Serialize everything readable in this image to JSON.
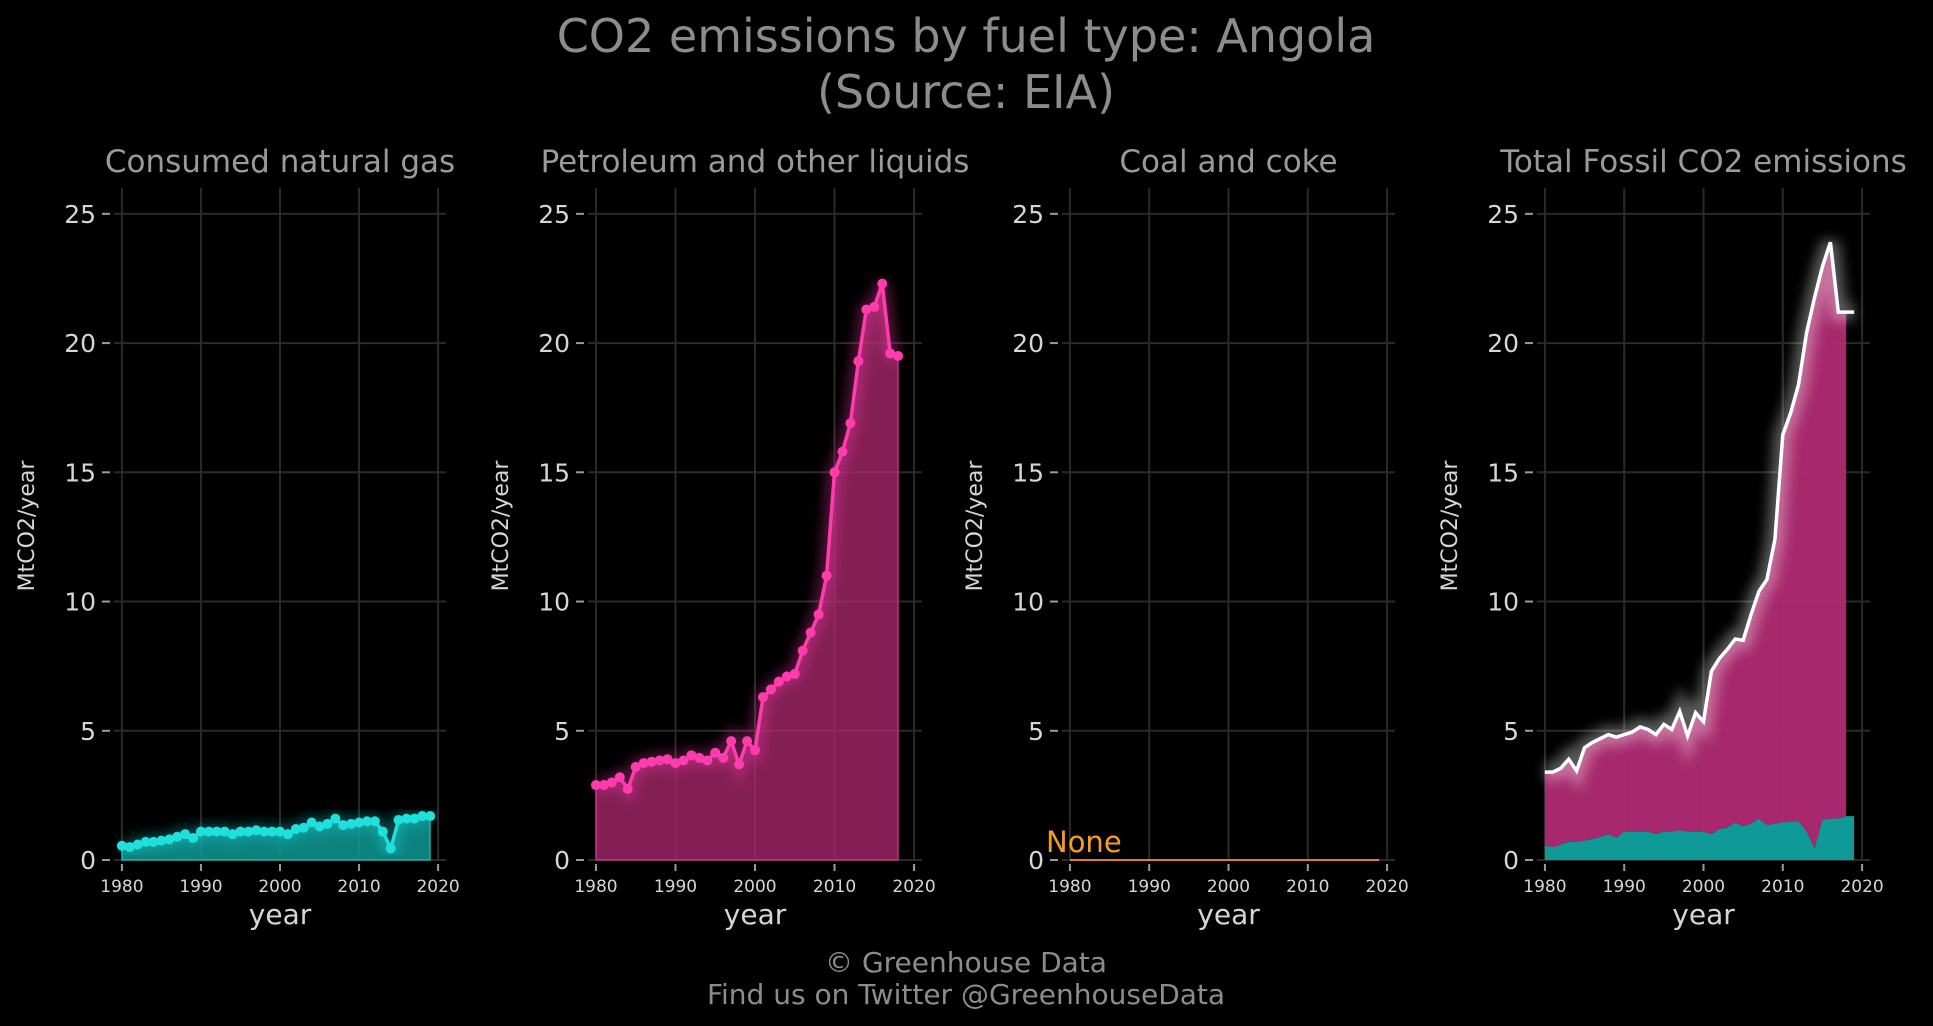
{
  "title_line1": "CO2 emissions by fuel type: Angola",
  "title_line2": "(Source: EIA)",
  "credit_line1": "© Greenhouse Data",
  "credit_line2": "Find us on Twitter @GreenhouseData",
  "colors": {
    "gas": "#1ee0dc",
    "gas_fill": "#0f9a97",
    "petroleum": "#ff3cad",
    "petroleum_fill": "#b02a72",
    "coal": "#e07a3a",
    "total": "#ffffff",
    "none_label": "#f29d23"
  },
  "chart_data": [
    {
      "type": "area",
      "title": "Consumed natural gas",
      "xlabel": "year",
      "ylabel": "MtCO2/year",
      "xlim": [
        1979,
        2021
      ],
      "ylim": [
        0,
        26
      ],
      "xticks": [
        1980,
        1990,
        2000,
        2010,
        2020
      ],
      "yticks": [
        0,
        5,
        10,
        15,
        20,
        25
      ],
      "series": [
        {
          "x": [
            1980,
            1981,
            1982,
            1983,
            1984,
            1985,
            1986,
            1987,
            1988,
            1989,
            1990,
            1991,
            1992,
            1993,
            1994,
            1995,
            1996,
            1997,
            1998,
            1999,
            2000,
            2001,
            2002,
            2003,
            2004,
            2005,
            2006,
            2007,
            2008,
            2009,
            2010,
            2011,
            2012,
            2013,
            2014,
            2015,
            2016,
            2017,
            2018,
            2019
          ],
          "y": [
            0.55,
            0.5,
            0.6,
            0.7,
            0.7,
            0.75,
            0.8,
            0.9,
            1.0,
            0.85,
            1.1,
            1.1,
            1.1,
            1.1,
            1.0,
            1.1,
            1.1,
            1.15,
            1.1,
            1.1,
            1.1,
            1.0,
            1.2,
            1.25,
            1.45,
            1.3,
            1.4,
            1.6,
            1.35,
            1.4,
            1.45,
            1.5,
            1.5,
            1.1,
            0.45,
            1.55,
            1.6,
            1.6,
            1.7,
            1.7
          ]
        }
      ]
    },
    {
      "type": "area",
      "title": "Petroleum and other liquids",
      "xlabel": "year",
      "ylabel": "MtCO2/year",
      "xlim": [
        1979,
        2021
      ],
      "ylim": [
        0,
        26
      ],
      "xticks": [
        1980,
        1990,
        2000,
        2010,
        2020
      ],
      "yticks": [
        0,
        5,
        10,
        15,
        20,
        25
      ],
      "series": [
        {
          "x": [
            1980,
            1981,
            1982,
            1983,
            1984,
            1985,
            1986,
            1987,
            1988,
            1989,
            1990,
            1991,
            1992,
            1993,
            1994,
            1995,
            1996,
            1997,
            1998,
            1999,
            2000,
            2001,
            2002,
            2003,
            2004,
            2005,
            2006,
            2007,
            2008,
            2009,
            2010,
            2011,
            2012,
            2013,
            2014,
            2015,
            2016,
            2017,
            2018
          ],
          "y": [
            2.9,
            2.9,
            3.0,
            3.2,
            2.75,
            3.6,
            3.75,
            3.8,
            3.85,
            3.9,
            3.75,
            3.85,
            4.05,
            3.95,
            3.85,
            4.15,
            3.95,
            4.6,
            3.7,
            4.6,
            4.25,
            6.3,
            6.6,
            6.9,
            7.1,
            7.2,
            8.1,
            8.8,
            9.5,
            11.0,
            15.0,
            15.8,
            16.9,
            19.3,
            21.3,
            21.4,
            22.3,
            19.6,
            19.5
          ]
        }
      ]
    },
    {
      "type": "line",
      "title": "Coal and coke",
      "xlabel": "year",
      "ylabel": "MtCO2/year",
      "xlim": [
        1979,
        2021
      ],
      "ylim": [
        0,
        26
      ],
      "xticks": [
        1980,
        1990,
        2000,
        2010,
        2020
      ],
      "yticks": [
        0,
        5,
        10,
        15,
        20,
        25
      ],
      "annotation": "None",
      "series": [
        {
          "x": [
            1980,
            2019
          ],
          "y": [
            0,
            0
          ]
        }
      ]
    },
    {
      "type": "area",
      "title": "Total Fossil CO2 emissions",
      "xlabel": "year",
      "ylabel": "MtCO2/year",
      "xlim": [
        1979,
        2021
      ],
      "ylim": [
        0,
        26
      ],
      "xticks": [
        1980,
        1990,
        2000,
        2010,
        2020
      ],
      "yticks": [
        0,
        5,
        10,
        15,
        20,
        25
      ],
      "stacked": true,
      "series": [
        {
          "name_key": "gas",
          "x": [
            1980,
            1981,
            1982,
            1983,
            1984,
            1985,
            1986,
            1987,
            1988,
            1989,
            1990,
            1991,
            1992,
            1993,
            1994,
            1995,
            1996,
            1997,
            1998,
            1999,
            2000,
            2001,
            2002,
            2003,
            2004,
            2005,
            2006,
            2007,
            2008,
            2009,
            2010,
            2011,
            2012,
            2013,
            2014,
            2015,
            2016,
            2017,
            2018,
            2019
          ],
          "y": [
            0.55,
            0.5,
            0.6,
            0.7,
            0.7,
            0.75,
            0.8,
            0.9,
            1.0,
            0.85,
            1.1,
            1.1,
            1.1,
            1.1,
            1.0,
            1.1,
            1.1,
            1.15,
            1.1,
            1.1,
            1.1,
            1.0,
            1.2,
            1.25,
            1.45,
            1.3,
            1.4,
            1.6,
            1.35,
            1.4,
            1.45,
            1.5,
            1.5,
            1.1,
            0.45,
            1.55,
            1.6,
            1.6,
            1.7,
            1.7
          ]
        },
        {
          "name_key": "petroleum",
          "x": [
            1980,
            1981,
            1982,
            1983,
            1984,
            1985,
            1986,
            1987,
            1988,
            1989,
            1990,
            1991,
            1992,
            1993,
            1994,
            1995,
            1996,
            1997,
            1998,
            1999,
            2000,
            2001,
            2002,
            2003,
            2004,
            2005,
            2006,
            2007,
            2008,
            2009,
            2010,
            2011,
            2012,
            2013,
            2014,
            2015,
            2016,
            2017,
            2018
          ],
          "y": [
            2.9,
            2.9,
            3.0,
            3.2,
            2.75,
            3.6,
            3.75,
            3.8,
            3.85,
            3.9,
            3.75,
            3.85,
            4.05,
            3.95,
            3.85,
            4.15,
            3.95,
            4.6,
            3.7,
            4.6,
            4.25,
            6.3,
            6.6,
            6.9,
            7.1,
            7.2,
            8.1,
            8.8,
            9.5,
            11.0,
            15.0,
            15.8,
            16.9,
            19.3,
            21.3,
            21.4,
            22.3,
            19.6,
            19.5
          ]
        }
      ],
      "total": {
        "x": [
          1980,
          1981,
          1982,
          1983,
          1984,
          1985,
          1986,
          1987,
          1988,
          1989,
          1990,
          1991,
          1992,
          1993,
          1994,
          1995,
          1996,
          1997,
          1998,
          1999,
          2000,
          2001,
          2002,
          2003,
          2004,
          2005,
          2006,
          2007,
          2008,
          2009,
          2010,
          2011,
          2012,
          2013,
          2014,
          2015,
          2016,
          2017,
          2018,
          2019
        ],
        "y": [
          3.4,
          3.4,
          3.55,
          3.9,
          3.45,
          4.35,
          4.55,
          4.7,
          4.85,
          4.75,
          4.85,
          4.95,
          5.15,
          5.05,
          4.85,
          5.25,
          5.05,
          5.75,
          4.8,
          5.7,
          5.35,
          7.3,
          7.8,
          8.15,
          8.55,
          8.5,
          9.5,
          10.4,
          10.85,
          12.4,
          16.45,
          17.3,
          18.4,
          20.4,
          21.75,
          22.95,
          23.9,
          21.2,
          21.2,
          21.2
        ]
      }
    }
  ]
}
